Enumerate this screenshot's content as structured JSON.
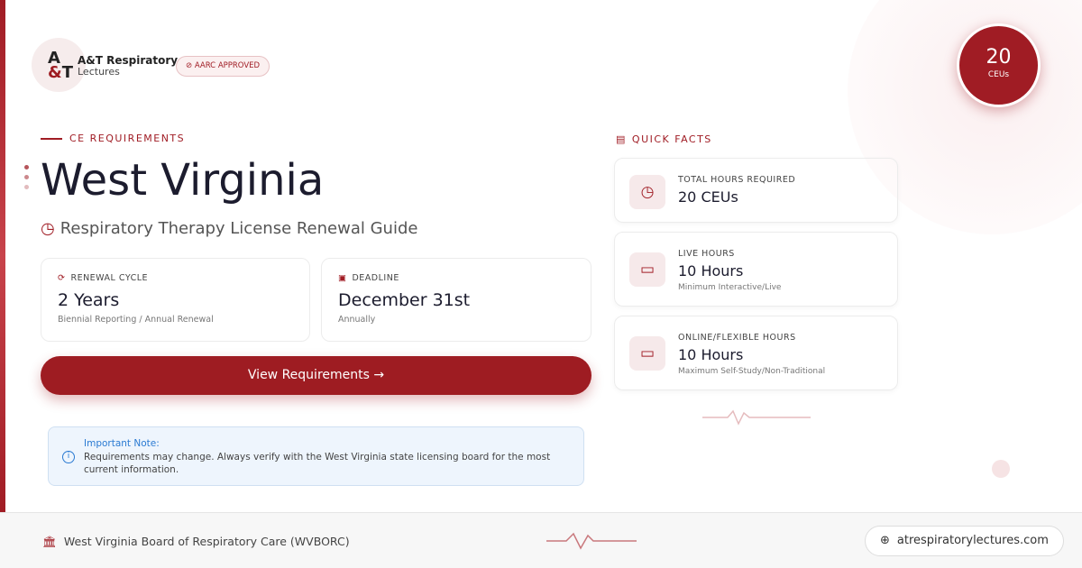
{
  "brand": {
    "logo_text": "A&T",
    "name_line1": "A&T Respiratory",
    "name_line2": "Lectures",
    "approval_badge": "AARC APPROVED"
  },
  "ceu_badge": {
    "value": "20",
    "unit": "CEUs"
  },
  "section_label": "CE REQUIREMENTS",
  "state": "West Virginia",
  "subtitle": "Respiratory Therapy License Renewal Guide",
  "renewal": {
    "label": "RENEWAL CYCLE",
    "value": "2 Years",
    "detail": "Biennial Reporting / Annual Renewal"
  },
  "deadline": {
    "label": "DEADLINE",
    "value": "December 31st",
    "detail": "Annually"
  },
  "cta": {
    "label": "View Requirements →"
  },
  "note": {
    "title": "Important Note:",
    "text": "Requirements may change. Always verify with the West Virginia state licensing board for the most current information."
  },
  "quick_facts": {
    "label": "QUICK FACTS",
    "items": [
      {
        "label": "TOTAL HOURS REQUIRED",
        "value": "20 CEUs",
        "detail": "",
        "icon": "clock-icon"
      },
      {
        "label": "LIVE HOURS",
        "value": "10 Hours",
        "detail": "Minimum Interactive/Live",
        "icon": "video-icon"
      },
      {
        "label": "ONLINE/FLEXIBLE HOURS",
        "value": "10 Hours",
        "detail": "Maximum Self-Study/Non-Traditional",
        "icon": "monitor-icon"
      }
    ]
  },
  "footer": {
    "board": "West Virginia Board of Respiratory Care (WVBORC)",
    "website": "atrespiratorylectures.com"
  },
  "colors": {
    "accent": "#9e1c22",
    "note_blue": "#2a7ad2"
  }
}
